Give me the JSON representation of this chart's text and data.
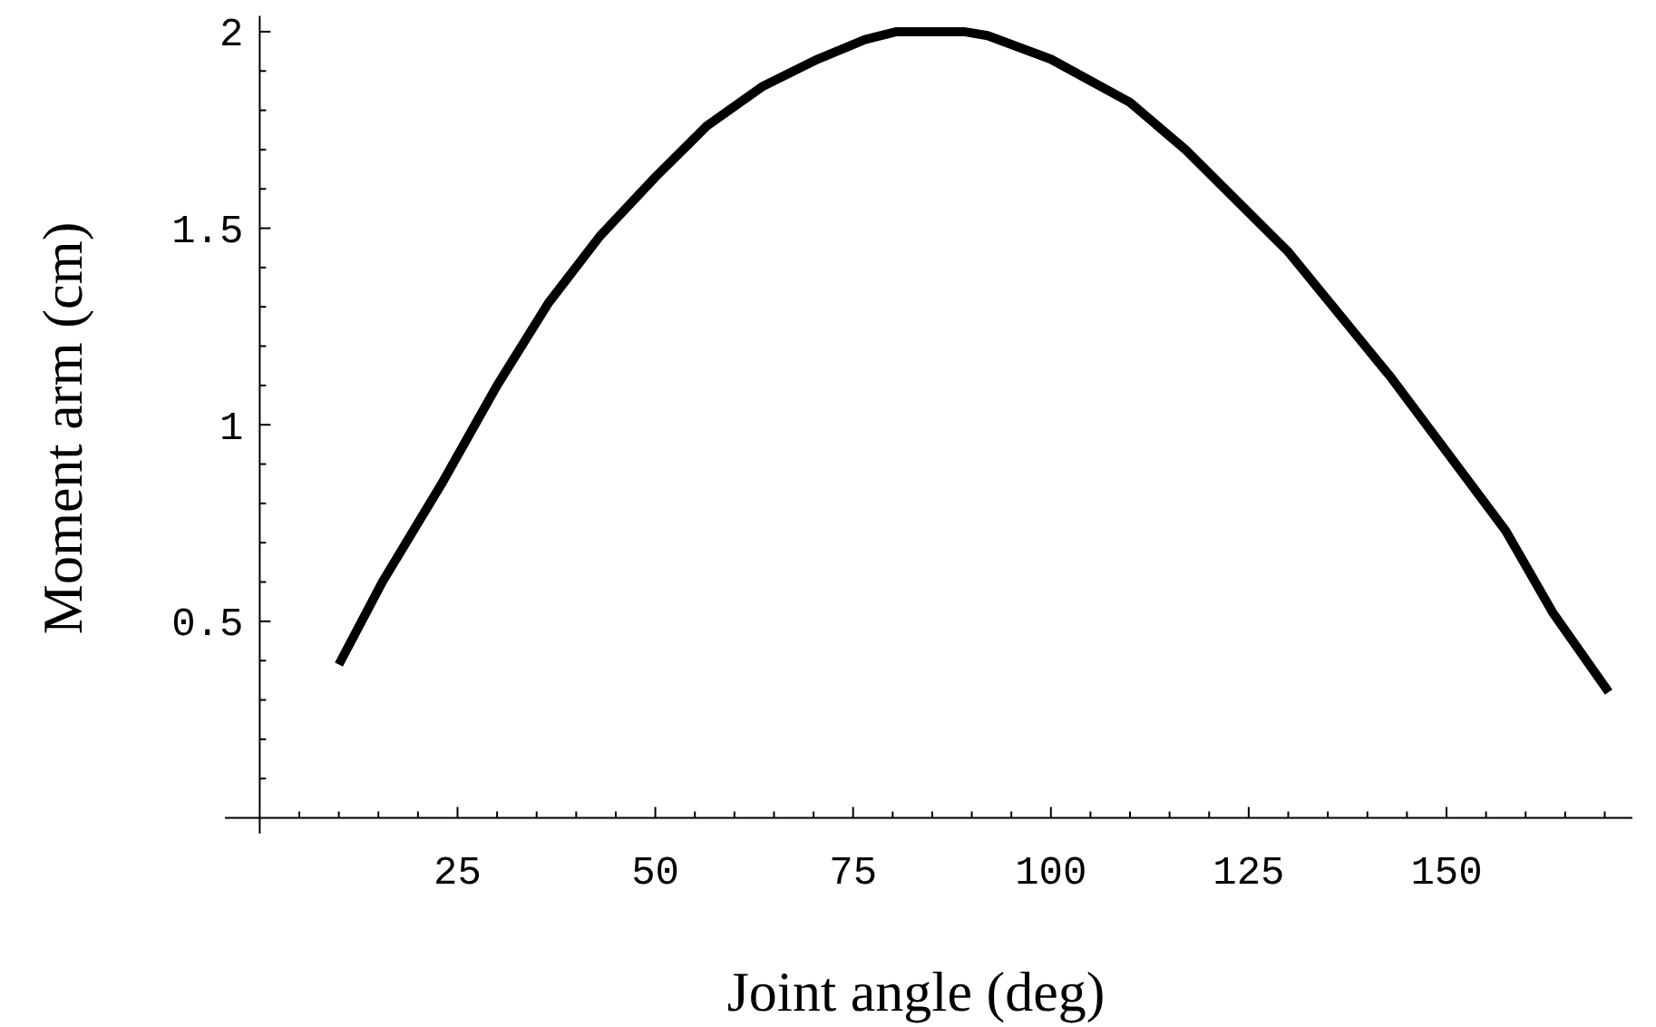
{
  "chart_data": {
    "type": "line",
    "xlabel": "Joint angle (deg)",
    "ylabel": "Moment arm (cm)",
    "x": [
      10,
      15.5,
      23,
      30,
      36.5,
      43,
      50,
      56.5,
      63.5,
      70.5,
      76.5,
      80.5,
      89,
      92,
      100,
      110,
      117,
      130,
      143,
      157.5,
      163.5,
      170.5
    ],
    "series": [
      {
        "color": "#000000",
        "values": [
          0.39,
          0.6,
          0.85,
          1.1,
          1.31,
          1.48,
          1.63,
          1.76,
          1.86,
          1.93,
          1.98,
          2.0,
          2.0,
          1.99,
          1.93,
          1.82,
          1.7,
          1.44,
          1.12,
          0.73,
          0.52,
          0.32
        ]
      }
    ],
    "xlim": [
      -4.4,
      173.5
    ],
    "ylim": [
      -0.04,
      2.04
    ],
    "xticks": [
      {
        "value": 5,
        "label": null
      },
      {
        "value": 10,
        "label": null
      },
      {
        "value": 15,
        "label": null
      },
      {
        "value": 20,
        "label": null
      },
      25,
      {
        "value": 30,
        "label": null
      },
      {
        "value": 35,
        "label": null
      },
      {
        "value": 40,
        "label": null
      },
      {
        "value": 45,
        "label": null
      },
      50,
      {
        "value": 55,
        "label": null
      },
      {
        "value": 60,
        "label": null
      },
      {
        "value": 65,
        "label": null
      },
      {
        "value": 70,
        "label": null
      },
      75,
      {
        "value": 80,
        "label": null
      },
      {
        "value": 85,
        "label": null
      },
      {
        "value": 90,
        "label": null
      },
      {
        "value": 95,
        "label": null
      },
      100,
      {
        "value": 105,
        "label": null
      },
      {
        "value": 110,
        "label": null
      },
      {
        "value": 115,
        "label": null
      },
      {
        "value": 120,
        "label": null
      },
      125,
      {
        "value": 130,
        "label": null
      },
      {
        "value": 135,
        "label": null
      },
      {
        "value": 140,
        "label": null
      },
      {
        "value": 145,
        "label": null
      },
      150,
      {
        "value": 155,
        "label": null
      },
      {
        "value": 160,
        "label": null
      },
      {
        "value": 165,
        "label": null
      },
      {
        "value": 170,
        "label": null
      }
    ],
    "yticks": [
      {
        "value": 0.1,
        "label": null
      },
      {
        "value": 0.2,
        "label": null
      },
      {
        "value": 0.3,
        "label": null
      },
      {
        "value": 0.4,
        "label": null
      },
      0.5,
      {
        "value": 0.6,
        "label": null
      },
      {
        "value": 0.7,
        "label": null
      },
      {
        "value": 0.8,
        "label": null
      },
      {
        "value": 0.9,
        "label": null
      },
      1,
      {
        "value": 1.1,
        "label": null
      },
      {
        "value": 1.2,
        "label": null
      },
      {
        "value": 1.3,
        "label": null
      },
      {
        "value": 1.4,
        "label": null
      },
      1.5,
      {
        "value": 1.6,
        "label": null
      },
      {
        "value": 1.7,
        "label": null
      },
      {
        "value": 1.8,
        "label": null
      },
      {
        "value": 1.9,
        "label": null
      },
      2
    ],
    "grid": false,
    "marker": "none",
    "line_style": "solid"
  }
}
